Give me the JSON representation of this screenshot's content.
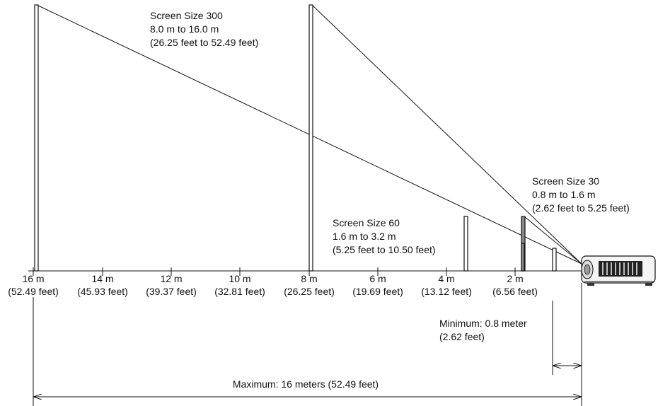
{
  "screens": [
    {
      "id": "size300",
      "title": "Screen Size 300",
      "range_m": "8.0 m to 16.0 m",
      "range_ft": "(26.25 feet to 52.49 feet)"
    },
    {
      "id": "size60",
      "title": "Screen Size 60",
      "range_m": "1.6 m to 3.2 m",
      "range_ft": "(5.25 feet to 10.50 feet)"
    },
    {
      "id": "size30",
      "title": "Screen Size 30",
      "range_m": "0.8 m to 1.6 m",
      "range_ft": "(2.62 feet to 5.25 feet)"
    }
  ],
  "ticks": [
    {
      "m": "16 m",
      "ft": "(52.49 feet)"
    },
    {
      "m": "14 m",
      "ft": "(45.93 feet)"
    },
    {
      "m": "12 m",
      "ft": "(39.37 feet)"
    },
    {
      "m": "10 m",
      "ft": "(32.81 feet)"
    },
    {
      "m": "8 m",
      "ft": "(26.25 feet)"
    },
    {
      "m": "6 m",
      "ft": "(19.69 feet)"
    },
    {
      "m": "4 m",
      "ft": "(13.12 feet)"
    },
    {
      "m": "2 m",
      "ft": "(6.56 feet)"
    }
  ],
  "minimum": {
    "line1": "Minimum: 0.8 meter",
    "line2": "(2.62 feet)"
  },
  "maximum": {
    "label": "Maximum: 16 meters (52.49 feet)"
  },
  "projector_icon": "projector-icon"
}
